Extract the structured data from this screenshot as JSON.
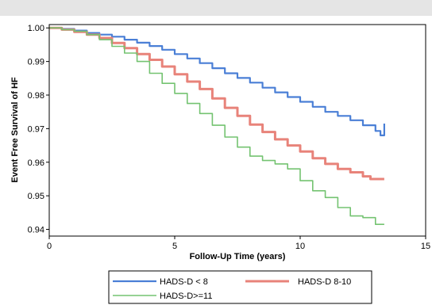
{
  "chart_data": {
    "type": "line",
    "title": "",
    "xlabel": "Follow-Up Time (years)",
    "ylabel": "Event Free Survival of HF",
    "xlim": [
      0,
      15
    ],
    "ylim": [
      0.938,
      1.001
    ],
    "x_ticks": [
      0,
      5,
      10,
      15
    ],
    "x_tick_labels": [
      "0",
      "5",
      "10",
      "15"
    ],
    "y_ticks": [
      0.94,
      0.95,
      0.96,
      0.97,
      0.98,
      0.99,
      1.0
    ],
    "y_tick_labels": [
      "0.94",
      "0.95",
      "0.96",
      "0.97",
      "0.98",
      "0.99",
      "1.00"
    ],
    "grid": false,
    "legend_position": "bottom",
    "series": [
      {
        "name": "HADS-D < 8",
        "color": "#4a7fd6",
        "x": [
          0,
          0.5,
          1,
          1.5,
          2,
          2.5,
          3,
          3.5,
          4,
          4.5,
          5,
          5.5,
          6,
          6.5,
          7,
          7.5,
          8,
          8.5,
          9,
          9.5,
          10,
          10.5,
          11,
          11.5,
          12,
          12.5,
          13,
          13.2,
          13.35
        ],
        "values": [
          1.0,
          0.9997,
          0.9992,
          0.9985,
          0.998,
          0.9974,
          0.9965,
          0.9956,
          0.9946,
          0.9935,
          0.9922,
          0.9909,
          0.9895,
          0.988,
          0.9865,
          0.9851,
          0.9837,
          0.9822,
          0.9808,
          0.9794,
          0.978,
          0.9765,
          0.975,
          0.9738,
          0.9725,
          0.971,
          0.9693,
          0.968,
          0.9715
        ]
      },
      {
        "name": "HADS-D 8-10",
        "color": "#e8837a",
        "x": [
          0,
          0.5,
          1,
          1.5,
          2,
          2.5,
          3,
          3.5,
          4,
          4.5,
          5,
          5.5,
          6,
          6.5,
          7,
          7.5,
          8,
          8.5,
          9,
          9.5,
          10,
          10.5,
          11,
          11.5,
          12,
          12.5,
          12.8,
          13,
          13.35
        ],
        "values": [
          1.0,
          0.9995,
          0.9988,
          0.998,
          0.997,
          0.9955,
          0.994,
          0.9922,
          0.9905,
          0.9885,
          0.9862,
          0.984,
          0.9818,
          0.979,
          0.9762,
          0.9738,
          0.9712,
          0.969,
          0.9668,
          0.965,
          0.9632,
          0.9612,
          0.9595,
          0.958,
          0.957,
          0.9558,
          0.955,
          0.955,
          0.955
        ]
      },
      {
        "name": "HADS-D>=11",
        "color": "#74c371",
        "x": [
          0,
          0.5,
          1,
          1.5,
          2,
          2.5,
          3,
          3.5,
          4,
          4.5,
          5,
          5.5,
          6,
          6.5,
          7,
          7.5,
          8,
          8.5,
          9,
          9.5,
          10,
          10.5,
          11,
          11.5,
          12,
          12.5,
          12.8,
          13,
          13.35
        ],
        "values": [
          1.0,
          0.9995,
          0.999,
          0.998,
          0.9965,
          0.9945,
          0.9925,
          0.99,
          0.9865,
          0.9835,
          0.9805,
          0.9775,
          0.9745,
          0.971,
          0.9675,
          0.9645,
          0.9618,
          0.9605,
          0.9595,
          0.958,
          0.9545,
          0.9515,
          0.9495,
          0.9465,
          0.944,
          0.9435,
          0.9435,
          0.9415,
          0.9415
        ]
      }
    ]
  }
}
